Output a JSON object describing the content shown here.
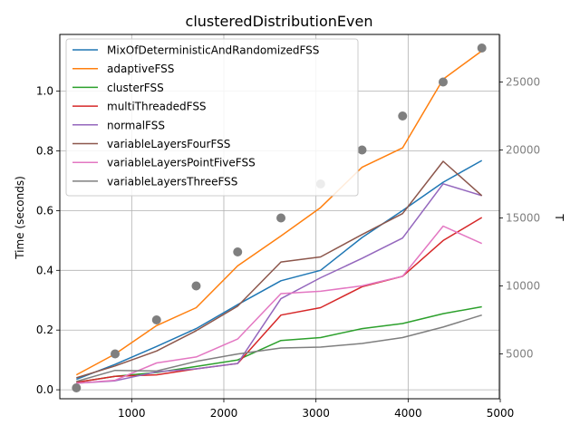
{
  "chart_data": {
    "type": "line",
    "title": "clusteredDistributionEven",
    "xlabel": "",
    "ylabel": "Time (seconds)",
    "y2label": "T",
    "xlim": [
      220,
      4990
    ],
    "ylim": [
      -0.03,
      1.19
    ],
    "y2lim": [
      1700,
      28500
    ],
    "xticks": [
      1000,
      2000,
      3000,
      4000,
      5000
    ],
    "yticks": [
      0.0,
      0.2,
      0.4,
      0.6,
      0.8,
      1.0
    ],
    "y2ticks": [
      5000,
      10000,
      15000,
      20000,
      25000
    ],
    "grid": true,
    "legend": "upper left",
    "x": [
      400,
      820,
      1270,
      1700,
      2150,
      2620,
      3050,
      3500,
      3940,
      4380,
      4800
    ],
    "series": [
      {
        "name": "MixOfDeterministicAndRandomizedFSS",
        "color": "#1f77b4",
        "values": [
          0.035,
          0.085,
          0.145,
          0.205,
          0.285,
          0.365,
          0.4,
          0.51,
          0.6,
          0.695,
          0.768
        ]
      },
      {
        "name": "adaptiveFSS",
        "color": "#ff7f0e",
        "values": [
          0.05,
          0.12,
          0.215,
          0.275,
          0.415,
          0.515,
          0.61,
          0.745,
          0.81,
          1.04,
          1.135
        ]
      },
      {
        "name": "clusterFSS",
        "color": "#2ca02c",
        "values": [
          0.025,
          0.045,
          0.058,
          0.078,
          0.1,
          0.165,
          0.175,
          0.205,
          0.222,
          0.255,
          0.278
        ]
      },
      {
        "name": "multiThreadedFSS",
        "color": "#d62728",
        "values": [
          0.025,
          0.045,
          0.05,
          0.07,
          0.088,
          0.25,
          0.275,
          0.345,
          0.38,
          0.5,
          0.577
        ]
      },
      {
        "name": "normalFSS",
        "color": "#9467bd",
        "values": [
          0.022,
          0.03,
          0.06,
          0.07,
          0.088,
          0.305,
          0.375,
          0.44,
          0.508,
          0.69,
          0.65
        ]
      },
      {
        "name": "variableLayersFourFSS",
        "color": "#8c564b",
        "values": [
          0.04,
          0.08,
          0.13,
          0.198,
          0.28,
          0.428,
          0.445,
          0.52,
          0.59,
          0.765,
          0.65
        ]
      },
      {
        "name": "variableLayersPointFiveFSS",
        "color": "#e377c2",
        "values": [
          0.022,
          0.032,
          0.09,
          0.11,
          0.17,
          0.322,
          0.33,
          0.348,
          0.38,
          0.548,
          0.49
        ]
      },
      {
        "name": "variableLayersThreeFSS",
        "color": "#7f7f7f",
        "values": [
          0.028,
          0.065,
          0.063,
          0.095,
          0.12,
          0.14,
          0.143,
          0.155,
          0.175,
          0.21,
          0.25
        ]
      }
    ],
    "scatter_secondary": {
      "color": "#7f7f7f",
      "values": [
        2500,
        5000,
        7500,
        10000,
        12500,
        15000,
        17500,
        20000,
        22500,
        25000,
        27500
      ]
    }
  }
}
